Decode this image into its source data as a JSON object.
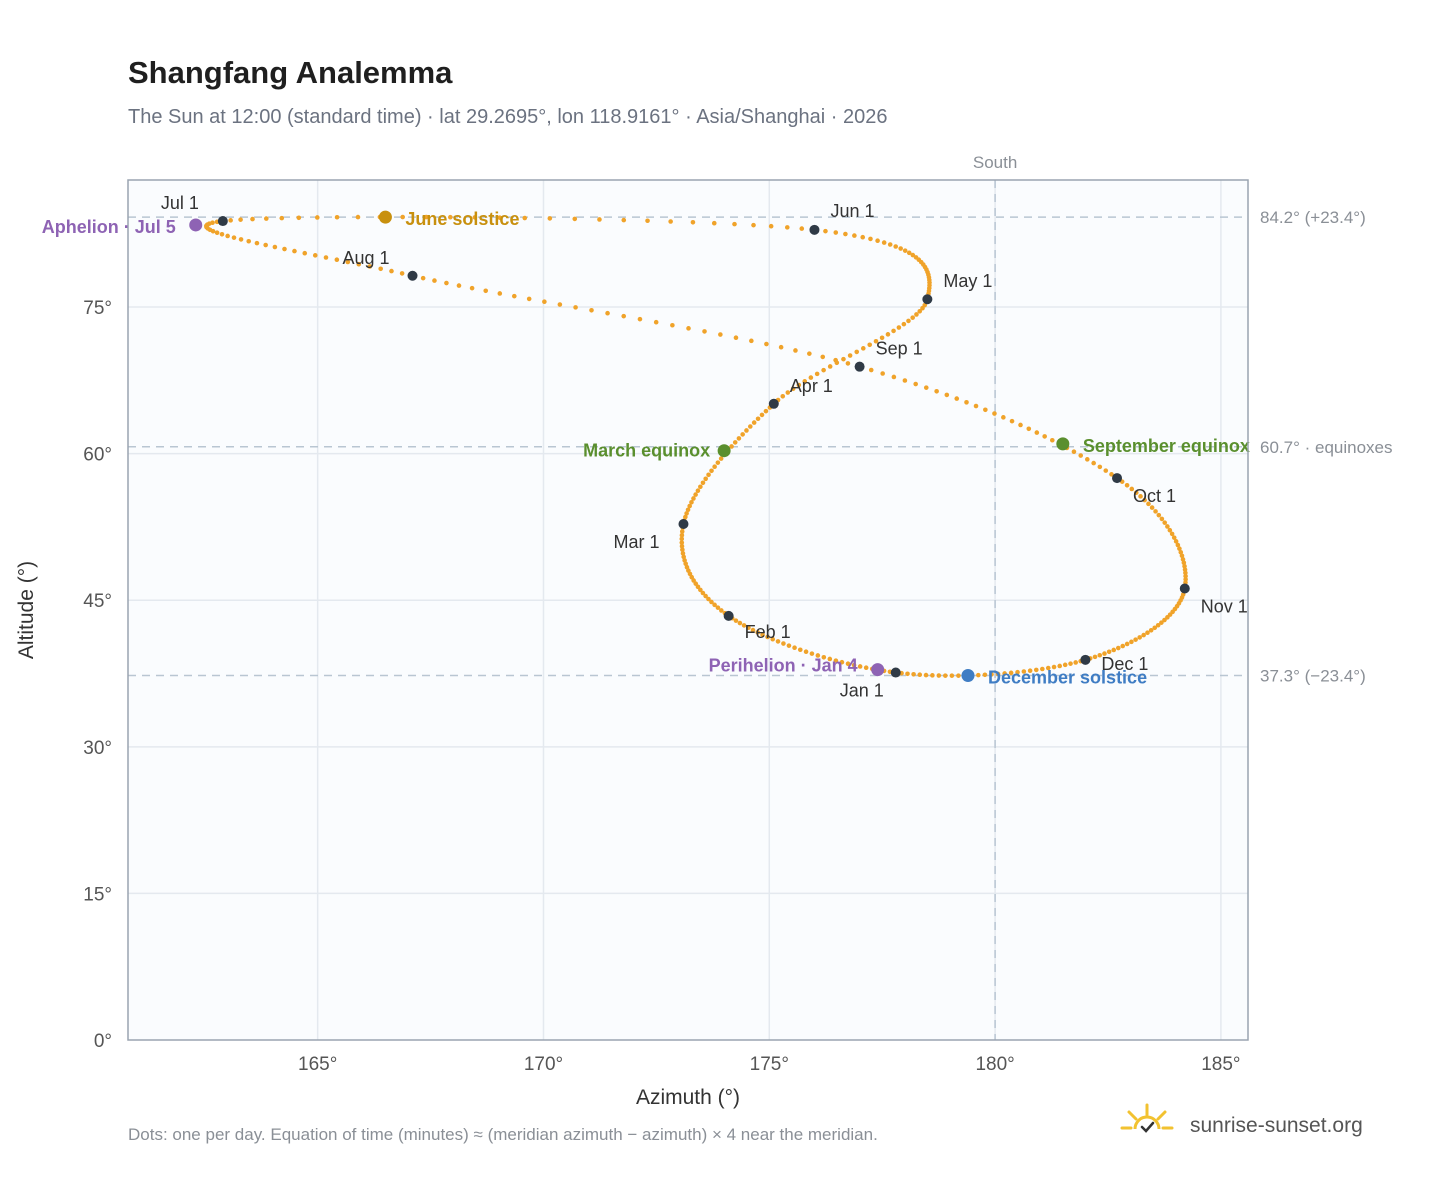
{
  "chart_data": {
    "type": "scatter",
    "title": "Shangfang Analemma",
    "subtitle": "The Sun at 12:00 (standard time) · lat 29.2695°, lon 118.9161° · Asia/Shanghai · 2026",
    "xlabel": "Azimuth (°)",
    "ylabel": "Altitude (°)",
    "xlim": [
      160.8,
      185.6
    ],
    "ylim": [
      0,
      88
    ],
    "x_ticks": [
      {
        "value": 165,
        "label": "165°"
      },
      {
        "value": 170,
        "label": "170°"
      },
      {
        "value": 175,
        "label": "175°"
      },
      {
        "value": 180,
        "label": "180°"
      },
      {
        "value": 185,
        "label": "185°"
      }
    ],
    "y_ticks": [
      {
        "value": 0,
        "label": "0°"
      },
      {
        "value": 15,
        "label": "15°"
      },
      {
        "value": 30,
        "label": "30°"
      },
      {
        "value": 45,
        "label": "45°"
      },
      {
        "value": 60,
        "label": "60°"
      },
      {
        "value": 75,
        "label": "75°"
      }
    ],
    "grid": true,
    "meridian": {
      "azimuth": 180,
      "label": "South"
    },
    "reference_lines": [
      {
        "altitude": 84.2,
        "label": "84.2° (+23.4°)"
      },
      {
        "altitude": 60.7,
        "label": "60.7° · equinoxes"
      },
      {
        "altitude": 37.3,
        "label": "37.3° (−23.4°)"
      }
    ],
    "daily_points_color": "#f0a32a",
    "months": [
      {
        "label": "Jan 1",
        "az": 177.8,
        "alt": 37.6
      },
      {
        "label": "Feb 1",
        "az": 174.1,
        "alt": 43.4
      },
      {
        "label": "Mar 1",
        "az": 173.1,
        "alt": 52.8
      },
      {
        "label": "Apr 1",
        "az": 175.1,
        "alt": 65.1
      },
      {
        "label": "May 1",
        "az": 178.5,
        "alt": 75.8
      },
      {
        "label": "Jun 1",
        "az": 176.0,
        "alt": 82.9
      },
      {
        "label": "Jul 1",
        "az": 162.9,
        "alt": 83.8
      },
      {
        "label": "Aug 1",
        "az": 167.1,
        "alt": 78.2
      },
      {
        "label": "Sep 1",
        "az": 177.0,
        "alt": 68.9
      },
      {
        "label": "Oct 1",
        "az": 182.7,
        "alt": 57.5
      },
      {
        "label": "Nov 1",
        "az": 184.2,
        "alt": 46.2
      },
      {
        "label": "Dec 1",
        "az": 182.0,
        "alt": 38.9
      }
    ],
    "events": [
      {
        "label": "March equinox",
        "az": 174.0,
        "alt": 60.3,
        "color": "#5a8f2e"
      },
      {
        "label": "June solstice",
        "az": 166.5,
        "alt": 84.2,
        "color": "#c8900e"
      },
      {
        "label": "September equinox",
        "az": 181.5,
        "alt": 61.0,
        "color": "#5a8f2e"
      },
      {
        "label": "December solstice",
        "az": 179.4,
        "alt": 37.3,
        "color": "#3f7dc4"
      },
      {
        "label": "Aphelion · Jul 5",
        "az": 162.3,
        "alt": 83.4,
        "color": "#8e63b4"
      },
      {
        "label": "Perihelion · Jan 4",
        "az": 177.4,
        "alt": 37.9,
        "color": "#8e63b4"
      }
    ],
    "footnote": "Dots: one per day. Equation of time (minutes) ≈ (meridian azimuth − azimuth) × 4 near the meridian.",
    "brand": "sunrise-sunset.org"
  }
}
